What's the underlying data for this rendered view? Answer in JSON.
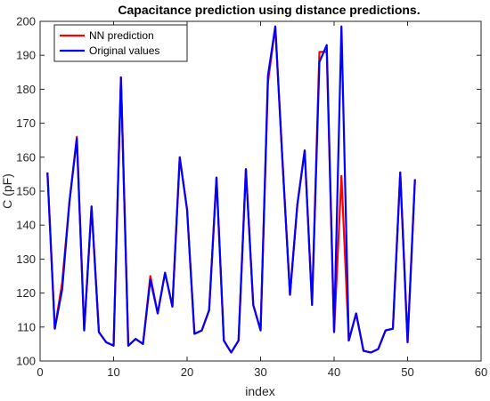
{
  "chart_data": {
    "type": "line",
    "title": "Capacitance prediction using distance predictions.",
    "xlabel": "index",
    "ylabel": "C (pF)",
    "xlim": [
      0,
      60
    ],
    "ylim": [
      100,
      200
    ],
    "xticks": [
      0,
      10,
      20,
      30,
      40,
      50,
      60
    ],
    "yticks": [
      100,
      110,
      120,
      130,
      140,
      150,
      160,
      170,
      180,
      190,
      200
    ],
    "grid": false,
    "legend_position": "top-left",
    "x": [
      1,
      2,
      3,
      4,
      5,
      6,
      7,
      8,
      9,
      10,
      11,
      12,
      13,
      14,
      15,
      16,
      17,
      18,
      19,
      20,
      21,
      22,
      23,
      24,
      25,
      26,
      27,
      28,
      29,
      30,
      31,
      32,
      33,
      34,
      35,
      36,
      37,
      38,
      39,
      40,
      41,
      42,
      43,
      44,
      45,
      46,
      47,
      48,
      49,
      50,
      51
    ],
    "series": [
      {
        "name": "NN prediction",
        "color": "#ff0000",
        "values": [
          155.5,
          109.5,
          123,
          147,
          166,
          109,
          145.5,
          108.5,
          105.5,
          104.5,
          183.5,
          104.5,
          106.5,
          105,
          125,
          114,
          126,
          116,
          160,
          144.5,
          108,
          109,
          115,
          154,
          106,
          102.5,
          106,
          156.5,
          116.5,
          109,
          182,
          198.5,
          158,
          119.5,
          146,
          162,
          116.5,
          191,
          191,
          108.5,
          154.5,
          106,
          114,
          103,
          102.5,
          103.5,
          109,
          109.5,
          155.5,
          105.5,
          153.5
        ]
      },
      {
        "name": "Original values",
        "color": "#0000ff",
        "values": [
          155.5,
          109.5,
          121,
          147,
          165.5,
          109,
          145.5,
          108.5,
          105.5,
          104.5,
          183.5,
          104.5,
          106.5,
          105,
          124,
          114,
          126,
          116,
          160,
          144.5,
          108,
          109,
          115,
          154,
          106,
          102.5,
          106,
          156.5,
          116.5,
          109,
          184,
          198.5,
          158,
          119.5,
          146,
          162,
          116.5,
          188,
          193,
          108.5,
          198.5,
          106,
          114,
          103,
          102.5,
          103.5,
          109,
          109.5,
          155.5,
          105.5,
          153.5
        ]
      }
    ]
  }
}
